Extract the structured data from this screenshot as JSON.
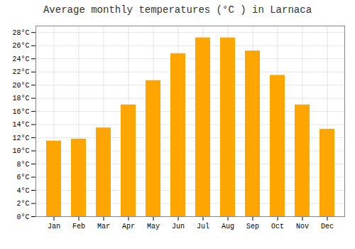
{
  "chart_data": {
    "type": "bar",
    "title": "Average monthly temperatures (°C ) in Larnaca",
    "categories": [
      "Jan",
      "Feb",
      "Mar",
      "Apr",
      "May",
      "Jun",
      "Jul",
      "Aug",
      "Sep",
      "Oct",
      "Nov",
      "Dec"
    ],
    "values": [
      11.5,
      11.8,
      13.5,
      17.0,
      20.7,
      24.8,
      27.2,
      27.2,
      25.2,
      21.5,
      17.0,
      13.3
    ],
    "color": "#FFA500",
    "ylim": [
      0,
      29
    ],
    "yticks": [
      {
        "value": 0,
        "label": "0°C"
      },
      {
        "value": 2,
        "label": "2°C"
      },
      {
        "value": 4,
        "label": "4°C"
      },
      {
        "value": 6,
        "label": "6°C"
      },
      {
        "value": 8,
        "label": "8°C"
      },
      {
        "value": 10,
        "label": "10°C"
      },
      {
        "value": 12,
        "label": "12°C"
      },
      {
        "value": 14,
        "label": "14°C"
      },
      {
        "value": 16,
        "label": "16°C"
      },
      {
        "value": 18,
        "label": "18°C"
      },
      {
        "value": 20,
        "label": "20°C"
      },
      {
        "value": 22,
        "label": "22°C"
      },
      {
        "value": 24,
        "label": "24°C"
      },
      {
        "value": 26,
        "label": "26°C"
      },
      {
        "value": 28,
        "label": "28°C"
      }
    ],
    "grid": true
  }
}
